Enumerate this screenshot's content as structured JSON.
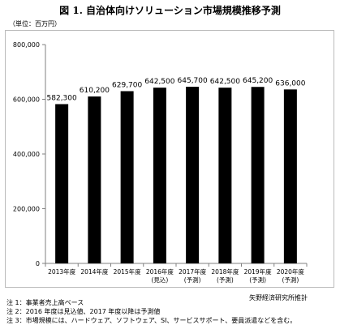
{
  "title": "図 1. 自治体向けソリューション市場規模推移予測",
  "unit": "（単位：百万円）",
  "source": "矢野経済研究所推計",
  "notes": [
    "注 1：事業者売上高ベース",
    "注 2：2016 年度は見込値、2017 年度以降は予測値",
    "注 3：市場規模には、ハードウェア、ソフトウェア、SI、サービスサポート、要員派遣などを含む。"
  ],
  "colors": {
    "bar": "#000000",
    "axis": "#808080",
    "frame": "#bbbbbb"
  },
  "chart_data": {
    "type": "bar",
    "categories": [
      [
        "2013年度"
      ],
      [
        "2014年度"
      ],
      [
        "2015年度"
      ],
      [
        "2016年度",
        "(見込)"
      ],
      [
        "2017年度",
        "(予測)"
      ],
      [
        "2018年度",
        "(予測)"
      ],
      [
        "2019年度",
        "(予測)"
      ],
      [
        "2020年度",
        "(予測)"
      ]
    ],
    "values": [
      582300,
      610200,
      629700,
      642500,
      645700,
      642500,
      645200,
      636000
    ],
    "value_labels": [
      "582,300",
      "610,200",
      "629,700",
      "642,500",
      "645,700",
      "642,500",
      "645,200",
      "636,000"
    ],
    "ylim": [
      0,
      800000
    ],
    "yticks": [
      0,
      200000,
      400000,
      600000,
      800000
    ],
    "ytick_labels": [
      "0",
      "200,000",
      "400,000",
      "600,000",
      "800,000"
    ],
    "grid": false,
    "legend": "none"
  }
}
